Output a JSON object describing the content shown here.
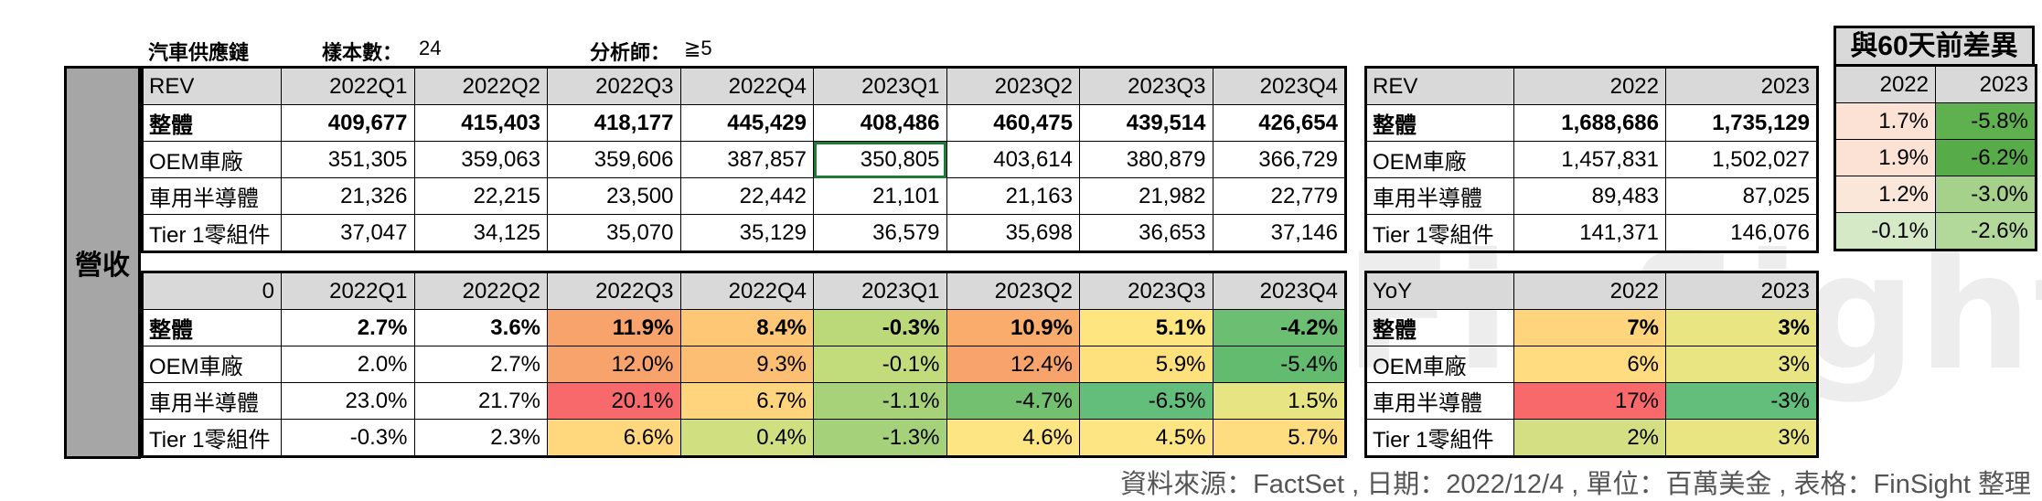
{
  "header": {
    "sector": "汽車供應鏈",
    "sample_label": "樣本數：",
    "sample_value": "24",
    "analyst_label": "分析師：",
    "analyst_value": "≧5"
  },
  "side_label": "營收",
  "rev_quarterly": {
    "corner": "REV",
    "periods": [
      "2022Q1",
      "2022Q2",
      "2022Q3",
      "2022Q4",
      "2023Q1",
      "2023Q2",
      "2023Q3",
      "2023Q4"
    ],
    "rows": [
      {
        "label": "整體",
        "values": [
          "409,677",
          "415,403",
          "418,177",
          "445,429",
          "408,486",
          "460,475",
          "439,514",
          "426,654"
        ]
      },
      {
        "label": "OEM車廠",
        "values": [
          "351,305",
          "359,063",
          "359,606",
          "387,857",
          "350,805",
          "403,614",
          "380,879",
          "366,729"
        ]
      },
      {
        "label": "車用半導體",
        "values": [
          "21,326",
          "22,215",
          "23,500",
          "22,442",
          "21,101",
          "21,163",
          "21,982",
          "22,779"
        ]
      },
      {
        "label": "Tier 1零組件",
        "values": [
          "37,047",
          "34,125",
          "35,070",
          "35,129",
          "36,579",
          "35,698",
          "36,653",
          "37,146"
        ]
      }
    ]
  },
  "rev_annual": {
    "corner": "REV",
    "periods": [
      "2022",
      "2023"
    ],
    "rows": [
      {
        "label": "整體",
        "values": [
          "1,688,686",
          "1,735,129"
        ]
      },
      {
        "label": "OEM車廠",
        "values": [
          "1,457,831",
          "1,502,027"
        ]
      },
      {
        "label": "車用半導體",
        "values": [
          "89,483",
          "87,025"
        ]
      },
      {
        "label": "Tier 1零組件",
        "values": [
          "141,371",
          "146,076"
        ]
      }
    ]
  },
  "diff_60d": {
    "title": "與60天前差異",
    "periods": [
      "2022",
      "2023"
    ],
    "rows": [
      {
        "values": [
          "1.7%",
          "-5.8%"
        ],
        "colors": [
          "#fbe2d5",
          "#5fb04f"
        ]
      },
      {
        "values": [
          "1.9%",
          "-6.2%"
        ],
        "colors": [
          "#fbe2d5",
          "#57ab48"
        ]
      },
      {
        "values": [
          "1.2%",
          "-3.0%"
        ],
        "colors": [
          "#fbe6da",
          "#a5d18b"
        ]
      },
      {
        "values": [
          "-0.1%",
          "-2.6%"
        ],
        "colors": [
          "#d6e9c6",
          "#b2d89a"
        ]
      }
    ]
  },
  "growth_quarterly": {
    "corner": "0",
    "periods": [
      "2022Q1",
      "2022Q2",
      "2022Q3",
      "2022Q4",
      "2023Q1",
      "2023Q2",
      "2023Q3",
      "2023Q4"
    ],
    "rows": [
      {
        "label": "整體",
        "values": [
          "2.7%",
          "3.6%",
          "11.9%",
          "8.4%",
          "-0.3%",
          "10.9%",
          "5.1%",
          "-4.2%"
        ],
        "colors": [
          "#ffffff",
          "#ffffff",
          "#f8a36b",
          "#fdc776",
          "#bbd978",
          "#f9ac6c",
          "#ffe57f",
          "#6cbf72"
        ]
      },
      {
        "label": "OEM車廠",
        "values": [
          "2.0%",
          "2.7%",
          "12.0%",
          "9.3%",
          "-0.1%",
          "12.4%",
          "5.9%",
          "-5.4%"
        ],
        "colors": [
          "#ffffff",
          "#ffffff",
          "#f8a36b",
          "#fcbe73",
          "#c2dc7b",
          "#f8a36b",
          "#fee07d",
          "#63bb6f"
        ]
      },
      {
        "label": "車用半導體",
        "values": [
          "23.0%",
          "21.7%",
          "20.1%",
          "6.7%",
          "-1.1%",
          "-4.7%",
          "-6.5%",
          "1.5%"
        ],
        "colors": [
          "#ffffff",
          "#ffffff",
          "#f8696b",
          "#fed47c",
          "#a8d27a",
          "#73c070",
          "#63be7b",
          "#e6e483"
        ]
      },
      {
        "label": "Tier 1零組件",
        "values": [
          "-0.3%",
          "2.3%",
          "6.6%",
          "0.4%",
          "-1.3%",
          "4.6%",
          "4.5%",
          "5.7%"
        ],
        "colors": [
          "#ffffff",
          "#ffffff",
          "#ffd87e",
          "#d0df7f",
          "#a4d17a",
          "#fee583",
          "#fee583",
          "#fedd80"
        ]
      }
    ]
  },
  "growth_annual": {
    "corner": "YoY",
    "periods": [
      "2022",
      "2023"
    ],
    "rows": [
      {
        "label": "整體",
        "values": [
          "7%",
          "3%"
        ],
        "colors": [
          "#fed47c",
          "#e9e583"
        ]
      },
      {
        "label": "OEM車廠",
        "values": [
          "6%",
          "3%"
        ],
        "colors": [
          "#fedc7f",
          "#e9e583"
        ]
      },
      {
        "label": "車用半導體",
        "values": [
          "17%",
          "-3%"
        ],
        "colors": [
          "#f8696b",
          "#63be7b"
        ]
      },
      {
        "label": "Tier 1零組件",
        "values": [
          "2%",
          "3%"
        ],
        "colors": [
          "#d3df82",
          "#e9e583"
        ]
      }
    ]
  },
  "watermark": "FinSight",
  "source_note": "資料來源：FactSet , 日期：2022/12/4 , 單位：百萬美金 , 表格：FinSight 整理"
}
